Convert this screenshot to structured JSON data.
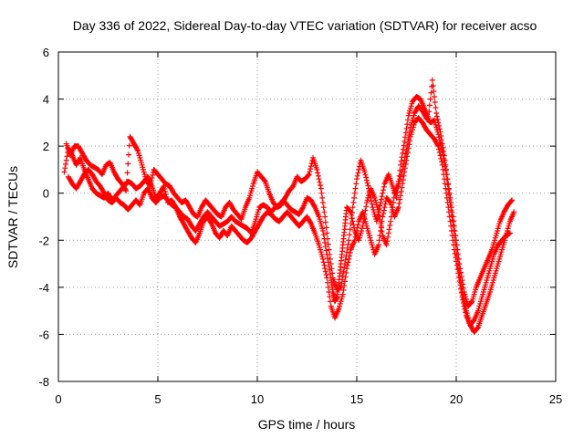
{
  "chart_data": {
    "type": "scatter",
    "title": "Day 336 of 2022, Sidereal Day-to-day VTEC variation (SDTVAR) for receiver acso",
    "xlabel": "GPS time / hours",
    "ylabel": "SDTVAR / TECUs",
    "xlim": [
      0,
      25
    ],
    "ylim": [
      -8,
      6
    ],
    "xticks": [
      0,
      5,
      10,
      15,
      20,
      25
    ],
    "yticks": [
      -8,
      -6,
      -4,
      -2,
      0,
      2,
      4,
      6
    ],
    "grid": true,
    "marker": "plus",
    "series": [
      {
        "name": "SDTVAR",
        "color": "#ff0000",
        "tracks": [
          {
            "x": [
              0.3,
              0.5,
              0.7,
              0.9,
              1.1,
              1.3,
              1.5,
              1.7,
              1.9,
              2.1,
              2.3,
              2.5,
              2.7,
              2.9,
              3.1,
              3.3,
              3.5,
              3.7,
              3.9,
              4.1,
              4.3,
              4.5,
              4.7,
              4.9,
              5.1,
              5.3,
              5.5,
              5.7,
              5.9,
              6.1,
              6.3,
              6.5,
              6.7,
              6.9,
              7.1,
              7.3,
              7.5,
              7.7,
              7.9,
              8.1,
              8.3,
              8.5,
              8.7,
              8.9,
              9.1,
              9.3,
              9.5,
              9.7,
              9.9,
              10.1,
              10.3,
              10.5,
              10.7,
              10.9,
              11.1,
              11.3,
              11.5,
              11.7,
              11.9,
              12.1,
              12.3,
              12.5,
              12.7,
              12.9,
              13.1,
              13.3,
              13.5,
              13.7,
              13.8,
              13.9,
              14.0,
              14.1,
              14.2,
              14.3,
              14.4,
              14.5,
              14.7,
              14.9,
              15.1,
              15.3,
              15.5,
              15.7,
              15.9,
              16.1,
              16.3,
              16.5,
              16.7,
              16.9,
              17.1,
              17.3,
              17.5,
              17.7,
              17.9,
              18.1,
              18.3,
              18.5,
              18.7,
              18.9,
              19.1,
              19.3,
              19.5,
              19.7,
              19.9,
              20.1,
              20.3,
              20.5,
              20.7,
              20.9,
              21.1,
              21.3,
              21.5,
              21.7,
              21.9,
              22.1,
              22.3,
              22.5,
              22.7,
              22.9
            ],
            "y": [
              0.9,
              1.9,
              1.6,
              1.2,
              1.5,
              1.0,
              0.6,
              0.2,
              0.0,
              -0.1,
              -0.2,
              0.0,
              -0.3,
              -0.1,
              0.1,
              0.3,
              0.5,
              0.4,
              0.2,
              0.3,
              0.5,
              0.7,
              0.3,
              -0.2,
              0.0,
              0.3,
              -0.4,
              -0.3,
              -0.6,
              -0.8,
              -1.0,
              -1.1,
              -1.4,
              -1.6,
              -1.3,
              -1.0,
              -0.8,
              -1.0,
              -1.2,
              -1.4,
              -1.3,
              -1.2,
              -1.0,
              -1.2,
              -1.3,
              -1.4,
              -1.5,
              -1.7,
              -1.2,
              -0.6,
              -0.5,
              -0.6,
              -0.8,
              -0.6,
              -0.5,
              -0.3,
              -0.5,
              -0.7,
              -0.8,
              -0.9,
              -0.6,
              -0.2,
              -0.3,
              -0.6,
              -1.0,
              -1.6,
              -2.6,
              -3.6,
              -4.2,
              -4.6,
              -4.4,
              -3.8,
              -3.0,
              -2.2,
              -1.4,
              -0.6,
              -0.8,
              -1.6,
              -2.0,
              -1.4,
              -0.4,
              0.2,
              -0.2,
              -0.8,
              -1.8,
              -2.2,
              -1.2,
              0.0,
              0.4,
              1.0,
              1.8,
              2.8,
              3.4,
              3.7,
              3.5,
              3.2,
              3.0,
              3.1,
              2.5,
              1.8,
              0.8,
              -0.5,
              -1.8,
              -3.0,
              -4.2,
              -5.0,
              -5.6,
              -5.9,
              -5.7,
              -5.2,
              -4.7,
              -4.2,
              -3.6,
              -3.0,
              -2.4,
              -1.8,
              -1.2,
              -0.8
            ]
          },
          {
            "x": [
              0.4,
              0.6,
              0.8,
              1.0,
              1.2,
              1.4,
              1.6,
              1.8,
              2.0,
              2.2,
              2.4,
              2.6,
              2.8,
              3.0,
              3.2,
              3.4,
              3.6,
              3.8,
              4.0,
              4.2,
              4.4,
              4.6,
              4.8,
              5.0,
              5.2,
              5.4,
              5.6,
              5.8,
              6.0,
              6.2,
              6.4,
              6.6,
              6.8,
              7.0,
              7.2,
              7.4,
              7.6,
              7.8,
              8.0,
              8.2,
              8.4,
              8.6,
              8.8,
              9.0,
              9.2,
              9.4,
              9.6,
              9.8,
              10.0,
              10.2,
              10.4,
              10.6,
              10.8,
              11.0,
              11.2,
              11.4,
              11.6,
              11.8,
              12.0,
              12.2,
              12.4,
              12.6,
              12.8,
              13.0,
              13.2,
              13.4,
              13.6,
              13.8,
              14.0,
              14.2,
              14.4,
              14.6,
              14.8,
              15.0,
              15.2,
              15.4,
              15.6,
              15.8,
              16.0,
              16.2,
              16.4,
              16.6,
              16.8,
              17.0,
              17.2,
              17.4,
              17.6,
              17.8,
              18.0,
              18.2,
              18.4,
              18.6,
              18.8,
              19.0,
              19.2,
              19.4,
              19.6,
              19.8,
              20.0,
              20.2,
              20.4,
              20.6,
              20.8,
              21.0,
              21.2,
              21.4,
              21.6,
              21.8,
              22.0,
              22.2,
              22.4,
              22.6,
              22.8
            ],
            "y": [
              2.1,
              1.6,
              2.0,
              2.0,
              1.7,
              1.4,
              1.2,
              1.1,
              1.0,
              0.8,
              1.2,
              1.3,
              0.9,
              0.6,
              0.4,
              0.1,
              2.4,
              2.1,
              1.8,
              1.2,
              0.6,
              0.3,
              1.0,
              0.8,
              0.6,
              0.4,
              0.3,
              0.0,
              -0.2,
              -0.4,
              -0.3,
              -0.6,
              -0.9,
              -1.0,
              -0.6,
              -0.3,
              -0.5,
              -0.7,
              -0.9,
              -1.0,
              -0.6,
              -0.4,
              -0.7,
              -0.9,
              -1.1,
              -0.6,
              -0.2,
              0.4,
              0.9,
              0.7,
              0.5,
              0.0,
              -0.4,
              -0.6,
              -0.5,
              -0.2,
              0.1,
              0.3,
              0.7,
              0.5,
              0.6,
              0.8,
              1.5,
              1.0,
              0.2,
              -1.0,
              -2.4,
              -3.6,
              -4.1,
              -4.0,
              -3.0,
              -2.0,
              -0.6,
              0.6,
              1.4,
              0.9,
              0.2,
              -0.6,
              -1.2,
              -0.4,
              0.4,
              0.8,
              0.3,
              -0.2,
              1.2,
              2.2,
              3.3,
              3.9,
              4.1,
              4.0,
              3.6,
              3.2,
              4.8,
              3.4,
              2.6,
              1.6,
              0.4,
              -0.8,
              -2.0,
              -3.2,
              -4.2,
              -4.8,
              -4.6,
              -4.0,
              -3.6,
              -3.2,
              -2.8,
              -2.4,
              -1.8,
              -1.2,
              -0.8,
              -0.5,
              -0.3
            ]
          },
          {
            "x": [
              0.5,
              0.7,
              0.9,
              1.1,
              1.3,
              1.5,
              1.7,
              1.9,
              2.1,
              2.3,
              2.5,
              2.7,
              2.9,
              3.1,
              3.3,
              3.5,
              3.7,
              3.9,
              4.1,
              4.3,
              4.5,
              4.7,
              4.9,
              5.1,
              5.3,
              5.5,
              5.7,
              5.9,
              6.1,
              6.3,
              6.5,
              6.7,
              6.9,
              7.1,
              7.3,
              7.5,
              7.7,
              7.9,
              8.1,
              8.3,
              8.5,
              8.7,
              8.9,
              9.1,
              9.3,
              9.5,
              9.7,
              9.9,
              10.1,
              10.3,
              10.5,
              10.7,
              10.9,
              11.1,
              11.3,
              11.5,
              11.7,
              11.9,
              12.1,
              12.3,
              12.5,
              12.7,
              12.9,
              13.1,
              13.3,
              13.5,
              13.7,
              13.9,
              14.1,
              14.3,
              14.5,
              14.7,
              14.9,
              15.1,
              15.3,
              15.5,
              15.7,
              15.9,
              16.1,
              16.3,
              16.5,
              16.7,
              16.9,
              17.1,
              17.3,
              17.5,
              17.7,
              17.9,
              18.1,
              18.3,
              18.5,
              18.7,
              18.9,
              19.1,
              19.3,
              19.5,
              19.7,
              19.9,
              20.1,
              20.3,
              20.5,
              20.7,
              20.9,
              21.1,
              21.3,
              21.5,
              21.7,
              21.9,
              22.1,
              22.3,
              22.5,
              22.7
            ],
            "y": [
              0.7,
              0.4,
              0.2,
              0.5,
              0.8,
              1.0,
              0.8,
              0.5,
              0.3,
              0.0,
              -0.3,
              -0.4,
              -0.2,
              -0.4,
              -0.5,
              -0.7,
              -0.5,
              -0.3,
              -0.5,
              0.0,
              0.2,
              -0.2,
              -0.4,
              -0.2,
              -0.1,
              -0.3,
              -0.5,
              -0.6,
              -1.0,
              -1.3,
              -1.6,
              -1.9,
              -2.1,
              -1.7,
              -1.2,
              -1.0,
              -1.3,
              -1.7,
              -1.9,
              -1.6,
              -1.8,
              -1.4,
              -1.6,
              -1.8,
              -2.0,
              -2.1,
              -1.9,
              -1.6,
              -1.3,
              -1.0,
              -0.8,
              -0.9,
              -1.1,
              -1.2,
              -1.0,
              -0.8,
              -1.0,
              -1.2,
              -1.4,
              -1.2,
              -1.0,
              -1.3,
              -1.7,
              -2.2,
              -2.8,
              -3.6,
              -4.8,
              -5.3,
              -4.9,
              -4.3,
              -3.2,
              -2.4,
              -2.0,
              -1.2,
              -0.8,
              -1.4,
              -2.0,
              -2.6,
              -2.2,
              -1.0,
              -0.2,
              -0.4,
              -1.0,
              -0.6,
              0.4,
              1.4,
              2.4,
              3.0,
              3.2,
              3.0,
              2.7,
              2.5,
              2.3,
              2.0,
              1.2,
              0.0,
              -1.2,
              -2.4,
              -3.4,
              -4.4,
              -5.2,
              -5.6,
              -5.4,
              -5.0,
              -4.4,
              -3.8,
              -3.2,
              -2.6,
              -2.2,
              -2.0,
              -1.8,
              -1.7
            ]
          }
        ]
      }
    ]
  }
}
